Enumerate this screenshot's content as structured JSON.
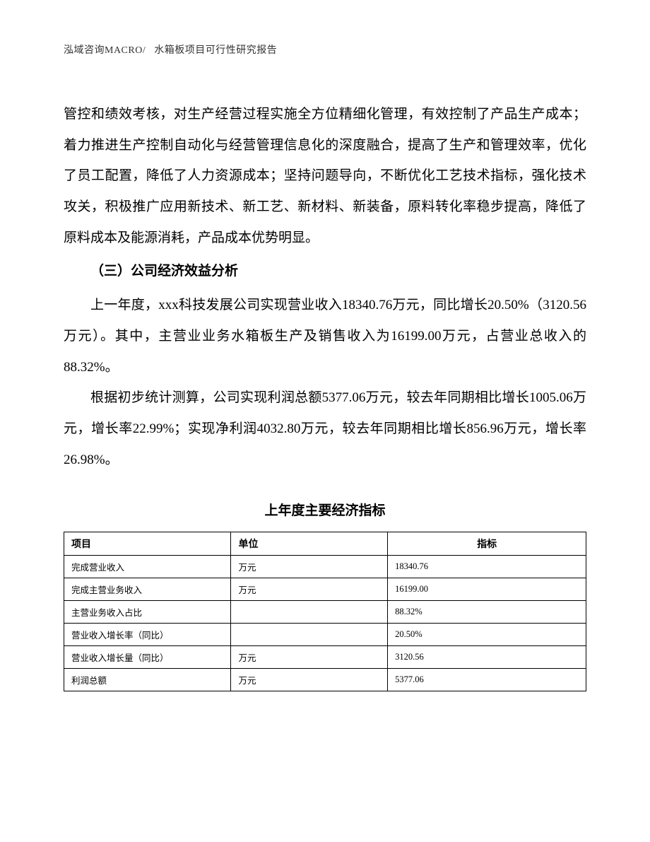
{
  "header": {
    "company": "泓域咨询MACRO/",
    "doc_title": "水箱板项目可行性研究报告"
  },
  "paragraphs": {
    "p1": "管控和绩效考核，对生产经营过程实施全方位精细化管理，有效控制了产品生产成本；着力推进生产控制自动化与经营管理信息化的深度融合，提高了生产和管理效率，优化了员工配置，降低了人力资源成本；坚持问题导向，不断优化工艺技术指标，强化技术攻关，积极推广应用新技术、新工艺、新材料、新装备，原料转化率稳步提高，降低了原料成本及能源消耗，产品成本优势明显。",
    "heading": "（三）公司经济效益分析",
    "p2": "上一年度，xxx科技发展公司实现营业收入18340.76万元，同比增长20.50%（3120.56万元）。其中，主营业业务水箱板生产及销售收入为16199.00万元，占营业总收入的88.32%。",
    "p3": "根据初步统计测算，公司实现利润总额5377.06万元，较去年同期相比增长1005.06万元，增长率22.99%；实现净利润4032.80万元，较去年同期相比增长856.96万元，增长率26.98%。"
  },
  "table": {
    "title": "上年度主要经济指标",
    "headers": {
      "col1": "项目",
      "col2": "单位",
      "col3": "指标"
    },
    "rows": [
      {
        "item": "完成营业收入",
        "unit": "万元",
        "value": "18340.76"
      },
      {
        "item": "完成主营业务收入",
        "unit": "万元",
        "value": "16199.00"
      },
      {
        "item": "主营业务收入占比",
        "unit": "",
        "value": "88.32%"
      },
      {
        "item": "营业收入增长率（同比）",
        "unit": "",
        "value": "20.50%"
      },
      {
        "item": "营业收入增长量（同比）",
        "unit": "万元",
        "value": "3120.56"
      },
      {
        "item": "利润总额",
        "unit": "万元",
        "value": "5377.06"
      }
    ]
  }
}
